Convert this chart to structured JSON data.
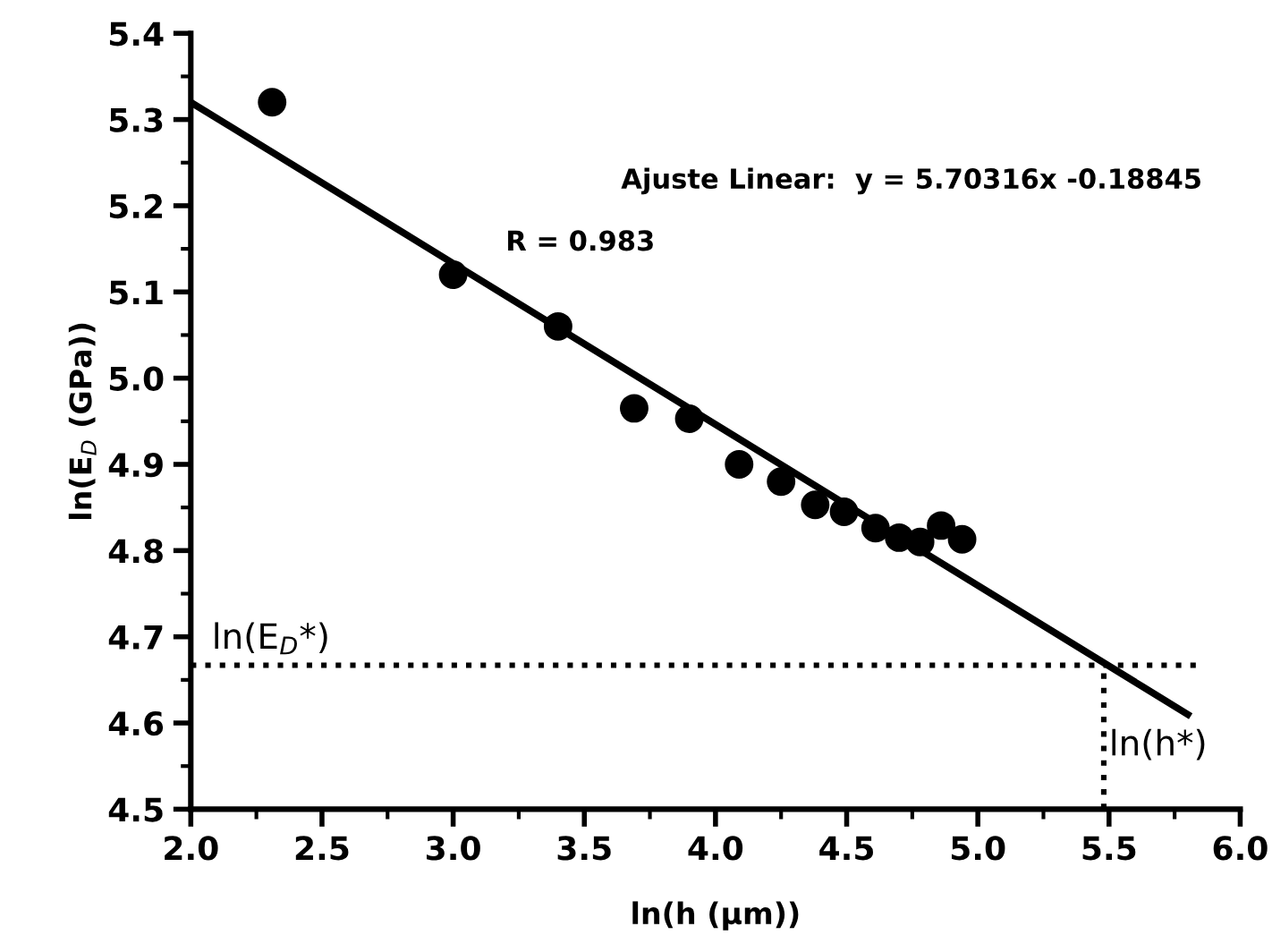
{
  "chart_data": {
    "type": "scatter",
    "xlabel": "ln(h (µm))",
    "ylabel": "ln(E$_{D}$ (GPa))",
    "annotations": [
      "Ajuste Linear:  y = 5.70316x -0.18845",
      "R = 0.983"
    ],
    "xlim": [
      2.0,
      6.0
    ],
    "xticks": [
      {
        "value": 2.0,
        "label": "2.0"
      },
      {
        "value": 2.5,
        "label": "2.5"
      },
      {
        "value": 3.0,
        "label": "3.0"
      },
      {
        "value": 3.5,
        "label": "3.5"
      },
      {
        "value": 4.0,
        "label": "4.0"
      },
      {
        "value": 4.5,
        "label": "4.5"
      },
      {
        "value": 5.0,
        "label": "5.0"
      },
      {
        "value": 5.5,
        "label": "5.5"
      },
      {
        "value": 6.0,
        "label": "6.0"
      }
    ],
    "ylim": [
      4.5,
      5.4
    ],
    "yticks": [
      {
        "value": 4.5,
        "label": "4.5"
      },
      {
        "value": 4.6,
        "label": "4.6"
      },
      {
        "value": 4.7,
        "label": "4.7"
      },
      {
        "value": 4.8,
        "label": "4.8"
      },
      {
        "value": 4.9,
        "label": "4.9"
      },
      {
        "value": 5.0,
        "label": "5.0"
      },
      {
        "value": 5.1,
        "label": "5.1"
      },
      {
        "value": 5.2,
        "label": "5.2"
      },
      {
        "value": 5.3,
        "label": "5.3"
      },
      {
        "value": 5.4,
        "label": "5.4"
      }
    ],
    "grid": false,
    "legend": false,
    "series": [
      {
        "color": "#000000",
        "marker": "circle",
        "x": [
          2.31,
          3.0,
          3.4,
          3.69,
          3.9,
          4.09,
          4.25,
          4.38,
          4.49,
          4.61,
          4.7,
          4.78,
          4.86,
          4.94
        ],
        "values": [
          5.32,
          5.12,
          5.06,
          4.965,
          4.953,
          4.9,
          4.88,
          4.853,
          4.845,
          4.826,
          4.815,
          4.81,
          4.829,
          4.813
        ]
      },
      {
        "type": "line",
        "color": "#000000",
        "line_style": "solid",
        "x": [
          2.0,
          5.8
        ],
        "values": [
          5.32,
          4.61
        ]
      }
    ],
    "ref_lines": [
      {
        "axis": "y",
        "value": 4.667,
        "label": "ln(E$_{D}$*)",
        "line_style": "dotted",
        "color": "#000000"
      },
      {
        "axis": "x",
        "value": 5.48,
        "label": "ln(h*)",
        "line_style": "dotted",
        "color": "#000000"
      }
    ]
  }
}
